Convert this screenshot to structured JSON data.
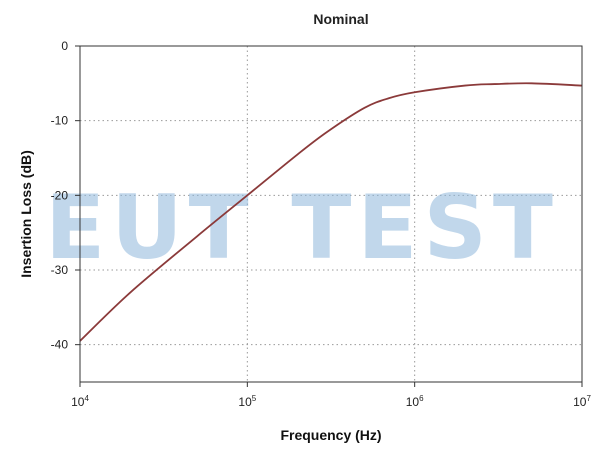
{
  "chart_data": {
    "type": "line",
    "title": "Nominal",
    "xlabel": "Frequency (Hz)",
    "ylabel": "Insertion Loss (dB)",
    "xscale": "log",
    "xlim": [
      10000,
      10000000
    ],
    "ylim": [
      -45,
      0
    ],
    "grid": true,
    "x_ticks": [
      {
        "base": "10",
        "exp": "4",
        "value": 10000
      },
      {
        "base": "10",
        "exp": "5",
        "value": 100000
      },
      {
        "base": "10",
        "exp": "6",
        "value": 1000000
      },
      {
        "base": "10",
        "exp": "7",
        "value": 10000000
      }
    ],
    "y_ticks": [
      "0",
      "-10",
      "-20",
      "-30",
      "-40"
    ],
    "y_tick_values": [
      0,
      -10,
      -20,
      -30,
      -40
    ],
    "series": [
      {
        "color": "#8b3a3a",
        "x": [
          10000,
          20000,
          50000,
          100000,
          200000,
          300000,
          500000,
          700000,
          1000000,
          2000000,
          3000000,
          5000000,
          10000000
        ],
        "y": [
          -39.5,
          -33.0,
          -25.5,
          -20.0,
          -14.5,
          -11.5,
          -8.3,
          -7.0,
          -6.2,
          -5.3,
          -5.1,
          -5.0,
          -5.3
        ]
      }
    ]
  },
  "watermark": "EUT TEST",
  "colors": {
    "line": "#8b3a3a",
    "watermark": "#8fb8dc"
  }
}
